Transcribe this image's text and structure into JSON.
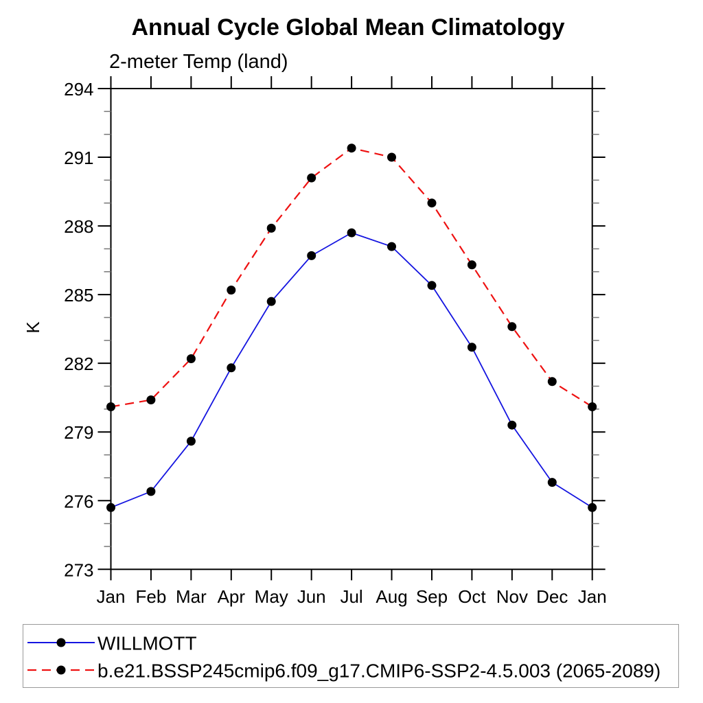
{
  "title": "Annual Cycle Global Mean Climatology",
  "subtitle": "2-meter Temp (land)",
  "ylabel": "K",
  "colors": {
    "axis": "#000000",
    "minor_tick": "#777777",
    "marker": "#000000",
    "legend_border": "#999999",
    "background": "#ffffff",
    "willmott_line": "#1414e0",
    "model_line": "#ee1111"
  },
  "legend": {
    "entries": [
      {
        "label": "WILLMOTT"
      },
      {
        "label": "b.e21.BSSP245cmip6.f09_g17.CMIP6-SSP2-4.5.003 (2065-2089)"
      }
    ]
  },
  "chart_data": {
    "type": "line",
    "title": "Annual Cycle Global Mean Climatology",
    "subtitle": "2-meter Temp (land)",
    "xlabel": "",
    "ylabel": "K",
    "categories": [
      "Jan",
      "Feb",
      "Mar",
      "Apr",
      "May",
      "Jun",
      "Jul",
      "Aug",
      "Sep",
      "Oct",
      "Nov",
      "Dec",
      "Jan"
    ],
    "ylim": [
      273,
      294
    ],
    "ytick_major": [
      273,
      276,
      279,
      282,
      285,
      288,
      291,
      294
    ],
    "ytick_minor_step": 1,
    "grid": false,
    "legend_position": "bottom",
    "series": [
      {
        "name": "WILLMOTT",
        "color": "#1414e0",
        "style": "solid",
        "marker": "filled-circle",
        "marker_color": "#000000",
        "values": [
          275.7,
          276.4,
          278.6,
          281.8,
          284.7,
          286.7,
          287.7,
          287.1,
          285.4,
          282.7,
          279.3,
          276.8,
          275.7
        ]
      },
      {
        "name": "b.e21.BSSP245cmip6.f09_g17.CMIP6-SSP2-4.5.003 (2065-2089)",
        "color": "#ee1111",
        "style": "dashed",
        "marker": "filled-circle",
        "marker_color": "#000000",
        "values": [
          280.1,
          280.4,
          282.2,
          285.2,
          287.9,
          290.1,
          291.4,
          291.0,
          289.0,
          286.3,
          283.6,
          281.2,
          280.1
        ]
      }
    ]
  }
}
